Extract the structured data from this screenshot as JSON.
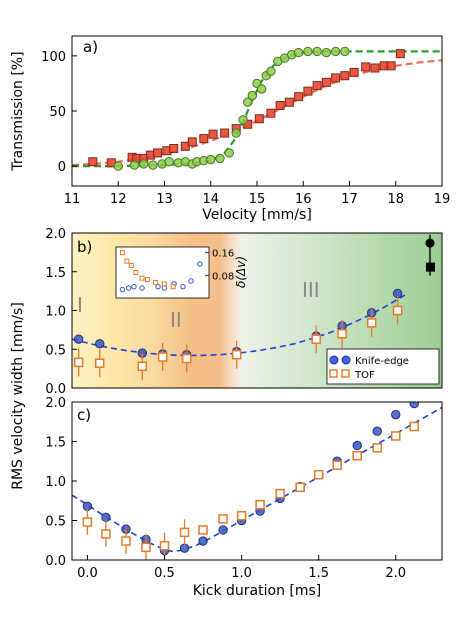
{
  "chart_data": [
    {
      "panel": "a)",
      "type": "scatter",
      "xlabel": "Velocity [mm/s]",
      "ylabel": "Transmission [%]",
      "xlim": [
        11,
        19
      ],
      "ylim": [
        -18,
        118
      ],
      "xticks": [
        11,
        12,
        13,
        14,
        15,
        16,
        17,
        18,
        19
      ],
      "yticks": [
        0,
        50,
        100
      ],
      "series": [
        {
          "marker": "square",
          "color": "#e8482f",
          "fit_color": "#f06a5a",
          "x": [
            11.45,
            11.85,
            12.3,
            12.4,
            12.55,
            12.7,
            12.85,
            13.05,
            13.2,
            13.45,
            13.6,
            13.85,
            14.05,
            14.3,
            14.55,
            14.8,
            15.05,
            15.3,
            15.5,
            15.7,
            15.9,
            16.1,
            16.3,
            16.5,
            16.7,
            16.9,
            17.1,
            17.35,
            17.55,
            17.75,
            17.9,
            18.1
          ],
          "y": [
            4,
            3,
            8,
            7,
            7,
            10,
            12,
            14,
            16,
            18,
            22,
            25,
            29,
            30,
            34,
            38,
            43,
            48,
            55,
            58,
            63,
            68,
            73,
            76,
            80,
            82,
            85,
            90,
            89,
            91,
            91,
            102
          ],
          "fit_x": [
            11.0,
            11.5,
            12.0,
            12.5,
            13.0,
            13.5,
            14.0,
            14.5,
            15.0,
            15.5,
            16.0,
            16.5,
            17.0,
            17.5,
            18.0,
            18.5,
            19.0
          ],
          "fit_y": [
            1,
            2,
            4,
            7,
            11,
            16,
            23,
            31,
            41,
            52,
            63,
            73,
            81,
            87,
            91,
            94,
            96
          ]
        },
        {
          "marker": "circle",
          "color": "#8ccf4a",
          "fit_color": "#2e9a2e",
          "x": [
            12.0,
            12.35,
            12.55,
            12.75,
            12.95,
            13.1,
            13.3,
            13.45,
            13.6,
            13.7,
            13.85,
            14.0,
            14.2,
            14.4,
            14.55,
            14.7,
            14.8,
            14.9,
            15.0,
            15.1,
            15.2,
            15.3,
            15.45,
            15.6,
            15.75,
            15.9,
            16.1,
            16.3,
            16.5,
            16.7,
            16.9
          ],
          "y": [
            0,
            1,
            2,
            1,
            2,
            4,
            3,
            4,
            2,
            4,
            5,
            6,
            7,
            12,
            30,
            42,
            58,
            64,
            75,
            70,
            82,
            86,
            95,
            98,
            101,
            103,
            104,
            104,
            103,
            104,
            104
          ],
          "fit_x": [
            11.0,
            12.0,
            13.0,
            13.5,
            14.0,
            14.3,
            14.5,
            14.7,
            14.9,
            15.1,
            15.3,
            15.5,
            15.7,
            16.0,
            16.5,
            17.0,
            18.0,
            19.0
          ],
          "fit_y": [
            0,
            0,
            1,
            2,
            5,
            12,
            23,
            40,
            60,
            77,
            89,
            96,
            100,
            103,
            104,
            104,
            104,
            104
          ]
        }
      ]
    },
    {
      "panel": "b)",
      "type": "scatter",
      "ylabel": "RMS velocity width [mm/s]",
      "xlim": [
        0,
        1
      ],
      "ylim": [
        0.0,
        2.0
      ],
      "yticks": [
        0.0,
        0.5,
        1.0,
        1.5,
        2.0
      ],
      "region_labels": [
        "I",
        "II",
        "III"
      ],
      "legend": [
        "Knife-edge",
        "TOF"
      ],
      "legend_loc": "lower right",
      "series": [
        {
          "name": "Knife-edge",
          "marker": "circle",
          "color": "#3a56c9",
          "x": [
            0.018,
            0.075,
            0.19,
            0.245,
            0.31,
            0.445,
            0.66,
            0.73,
            0.81,
            0.88
          ],
          "y": [
            0.63,
            0.57,
            0.45,
            0.44,
            0.43,
            0.47,
            0.67,
            0.8,
            0.97,
            1.22
          ]
        },
        {
          "name": "TOF",
          "marker": "square",
          "color": "#e57a28",
          "x": [
            0.018,
            0.075,
            0.19,
            0.245,
            0.31,
            0.445,
            0.66,
            0.73,
            0.81,
            0.88
          ],
          "y": [
            0.33,
            0.32,
            0.28,
            0.4,
            0.38,
            0.43,
            0.63,
            0.7,
            0.84,
            1.0
          ]
        }
      ],
      "fit": {
        "x": [
          0.0,
          0.05,
          0.1,
          0.15,
          0.2,
          0.25,
          0.3,
          0.35,
          0.4,
          0.45,
          0.5,
          0.55,
          0.6,
          0.65,
          0.7,
          0.75,
          0.8,
          0.85,
          0.9
        ],
        "y": [
          0.63,
          0.57,
          0.52,
          0.48,
          0.45,
          0.43,
          0.42,
          0.42,
          0.43,
          0.45,
          0.48,
          0.52,
          0.57,
          0.64,
          0.72,
          0.82,
          0.93,
          1.06,
          1.2
        ]
      },
      "reference_points": [
        {
          "marker": "circle",
          "color": "#000000",
          "y": 1.87
        },
        {
          "marker": "square",
          "color": "#000000",
          "y": 1.56
        }
      ],
      "inset": {
        "ylabel": "δ(Δv)",
        "ylim": [
          0,
          0.18
        ],
        "yticks": [
          0.08,
          0.16
        ],
        "ytick_labels": [
          "0.08",
          "0.16"
        ],
        "series": [
          {
            "marker": "circle",
            "color": "#3a56c9",
            "x": [
              0.05,
              0.12,
              0.18,
              0.27,
              0.45,
              0.52,
              0.63,
              0.73,
              0.82,
              0.92
            ],
            "y": [
              0.03,
              0.035,
              0.04,
              0.035,
              0.04,
              0.035,
              0.05,
              0.04,
              0.06,
              0.12
            ]
          },
          {
            "marker": "square",
            "color": "#e57a28",
            "x": [
              0.05,
              0.1,
              0.15,
              0.2,
              0.27,
              0.33,
              0.42,
              0.52,
              0.62
            ],
            "y": [
              0.16,
              0.13,
              0.115,
              0.09,
              0.07,
              0.065,
              0.055,
              0.05,
              0.04
            ]
          }
        ]
      }
    },
    {
      "panel": "c)",
      "type": "scatter",
      "xlabel": "Kick duration [ms]",
      "ylabel": "RMS velocity width [mm/s]",
      "xlim": [
        -0.1,
        2.3
      ],
      "ylim": [
        0.0,
        2.0
      ],
      "xticks": [
        0.0,
        0.5,
        1.0,
        1.5,
        2.0
      ],
      "yticks": [
        0.0,
        0.5,
        1.0,
        1.5,
        2.0
      ],
      "series": [
        {
          "name": "Knife-edge",
          "marker": "circle",
          "color": "#3a56c9",
          "x": [
            0.0,
            0.12,
            0.25,
            0.38,
            0.5,
            0.63,
            0.75,
            0.88,
            1.0,
            1.12,
            1.25,
            1.38,
            1.5,
            1.62,
            1.75,
            1.88,
            2.0,
            2.12
          ],
          "y": [
            0.68,
            0.54,
            0.39,
            0.26,
            0.12,
            0.15,
            0.24,
            0.38,
            0.5,
            0.62,
            0.78,
            0.93,
            1.08,
            1.25,
            1.45,
            1.63,
            1.84,
            1.98
          ]
        },
        {
          "name": "TOF",
          "marker": "square",
          "color": "#e57a28",
          "x": [
            0.0,
            0.12,
            0.25,
            0.38,
            0.5,
            0.63,
            0.75,
            0.88,
            1.0,
            1.12,
            1.25,
            1.38,
            1.5,
            1.62,
            1.75,
            1.88,
            2.0,
            2.12
          ],
          "y": [
            0.48,
            0.33,
            0.24,
            0.16,
            0.18,
            0.35,
            0.38,
            0.52,
            0.56,
            0.7,
            0.84,
            0.92,
            1.08,
            1.2,
            1.32,
            1.42,
            1.57,
            1.69
          ]
        }
      ],
      "fit": {
        "x": [
          -0.1,
          0.0,
          0.1,
          0.2,
          0.3,
          0.4,
          0.5,
          0.55,
          0.6,
          0.7,
          0.8,
          0.9,
          1.0,
          1.2,
          1.4,
          1.6,
          1.8,
          2.0,
          2.2,
          2.3
        ],
        "y": [
          0.82,
          0.7,
          0.57,
          0.45,
          0.33,
          0.22,
          0.13,
          0.11,
          0.12,
          0.18,
          0.28,
          0.39,
          0.5,
          0.72,
          0.94,
          1.16,
          1.38,
          1.6,
          1.82,
          1.93
        ]
      }
    }
  ],
  "colors": {
    "fit_blue": "#1f3fd6",
    "band_region_1": "#fde9a8",
    "band_region_2": "#f6c58a",
    "band_region_3": "#a9d3a0"
  }
}
